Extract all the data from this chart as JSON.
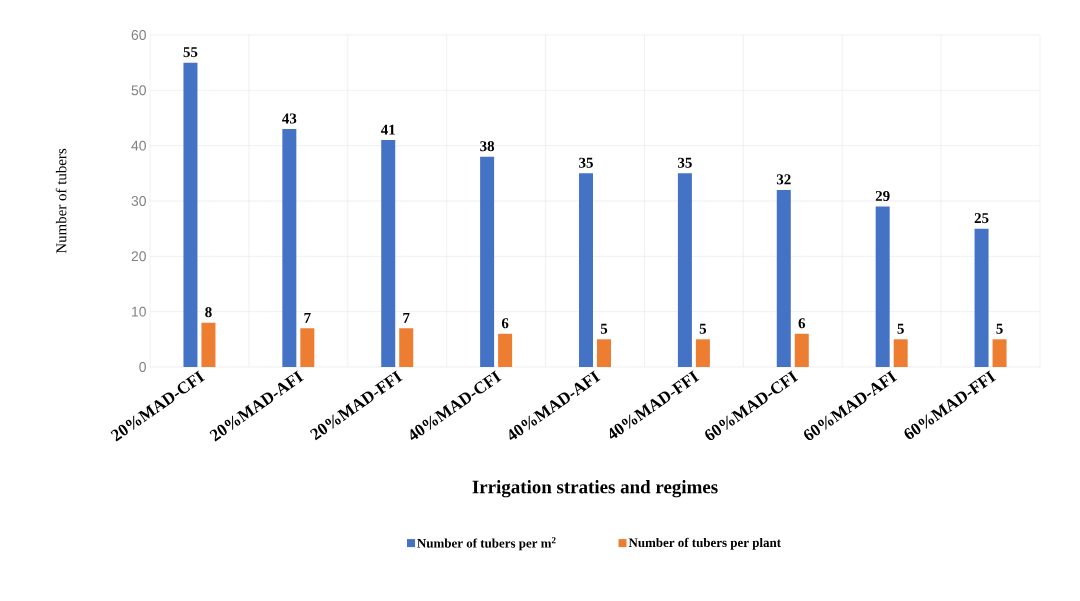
{
  "chart_data": {
    "type": "bar",
    "xlabel": "Irrigation straties and regimes",
    "ylabel": "Number of tubers",
    "categories": [
      "20%MAD-CFI",
      "20%MAD-AFI",
      "20%MAD-FFI",
      "40%MAD-CFI",
      "40%MAD-AFI",
      "40%MAD-FFI",
      "60%MAD-CFI",
      "60%MAD-AFI",
      "60%MAD-FFI"
    ],
    "series": [
      {
        "name": "Number of tubers per m$^{2}$",
        "color": "#4472c4",
        "values": [
          55,
          43,
          41,
          38,
          35,
          35,
          32,
          29,
          25
        ]
      },
      {
        "name": "Number of tubers per plant",
        "color": "#ed7d31",
        "values": [
          8,
          7,
          7,
          6,
          5,
          5,
          6,
          5,
          5
        ]
      }
    ],
    "ylim": [
      0,
      60
    ],
    "yticks": [
      0,
      10,
      20,
      30,
      40,
      50,
      60
    ],
    "grid": true,
    "legend": "bottom",
    "data_labels": true
  }
}
